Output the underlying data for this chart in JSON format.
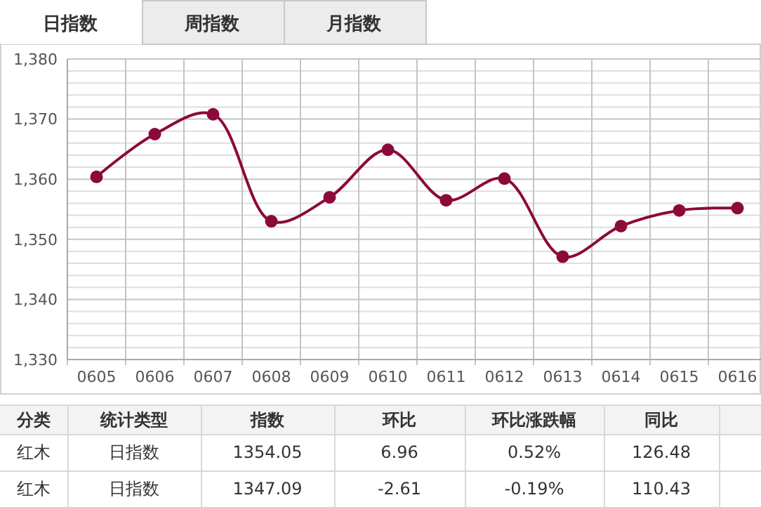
{
  "chart_data": [
    {
      "type": "line",
      "annotations": [
        "日指数",
        "周指数",
        "月指数"
      ],
      "categories": [
        "0605",
        "0606",
        "0607",
        "0608",
        "0609",
        "0610",
        "0611",
        "0612",
        "0613",
        "0614",
        "0615",
        "0616"
      ],
      "series": [
        {
          "color": "#8b0a3a",
          "values": [
            1360.4,
            1367.5,
            1370.8,
            1353.0,
            1357.0,
            1364.9,
            1356.5,
            1360.1,
            1347.1,
            1352.2,
            1354.8,
            1355.2
          ]
        }
      ],
      "ylim": [
        1330,
        1380
      ],
      "yticks": [
        {
          "value": 1330,
          "label": "1,330"
        },
        {
          "value": 1332,
          "label": null
        },
        {
          "value": 1334,
          "label": null
        },
        {
          "value": 1336,
          "label": null
        },
        {
          "value": 1338,
          "label": null
        },
        {
          "value": 1340,
          "label": "1,340"
        },
        {
          "value": 1342,
          "label": null
        },
        {
          "value": 1344,
          "label": null
        },
        {
          "value": 1346,
          "label": null
        },
        {
          "value": 1348,
          "label": null
        },
        {
          "value": 1350,
          "label": "1,350"
        },
        {
          "value": 1352,
          "label": null
        },
        {
          "value": 1354,
          "label": null
        },
        {
          "value": 1356,
          "label": null
        },
        {
          "value": 1358,
          "label": null
        },
        {
          "value": 1360,
          "label": "1,360"
        },
        {
          "value": 1362,
          "label": null
        },
        {
          "value": 1364,
          "label": null
        },
        {
          "value": 1366,
          "label": null
        },
        {
          "value": 1368,
          "label": null
        },
        {
          "value": 1370,
          "label": "1,370"
        },
        {
          "value": 1372,
          "label": null
        },
        {
          "value": 1374,
          "label": null
        },
        {
          "value": 1376,
          "label": null
        },
        {
          "value": 1378,
          "label": null
        },
        {
          "value": 1380,
          "label": "1,380"
        }
      ],
      "grid": true,
      "marker": "circle",
      "line_style": "solid"
    },
    {
      "type": "other",
      "categories": [
        "分类",
        "统计类型",
        "指数",
        "环比",
        "环比涨跌幅",
        "同比"
      ],
      "annotations": [
        "红木",
        "日指数",
        "1354.05",
        "6.96",
        "0.52%",
        "126.48",
        "红木",
        "日指数",
        "1347.09",
        "-2.61",
        "-0.19%",
        "110.43"
      ]
    }
  ]
}
